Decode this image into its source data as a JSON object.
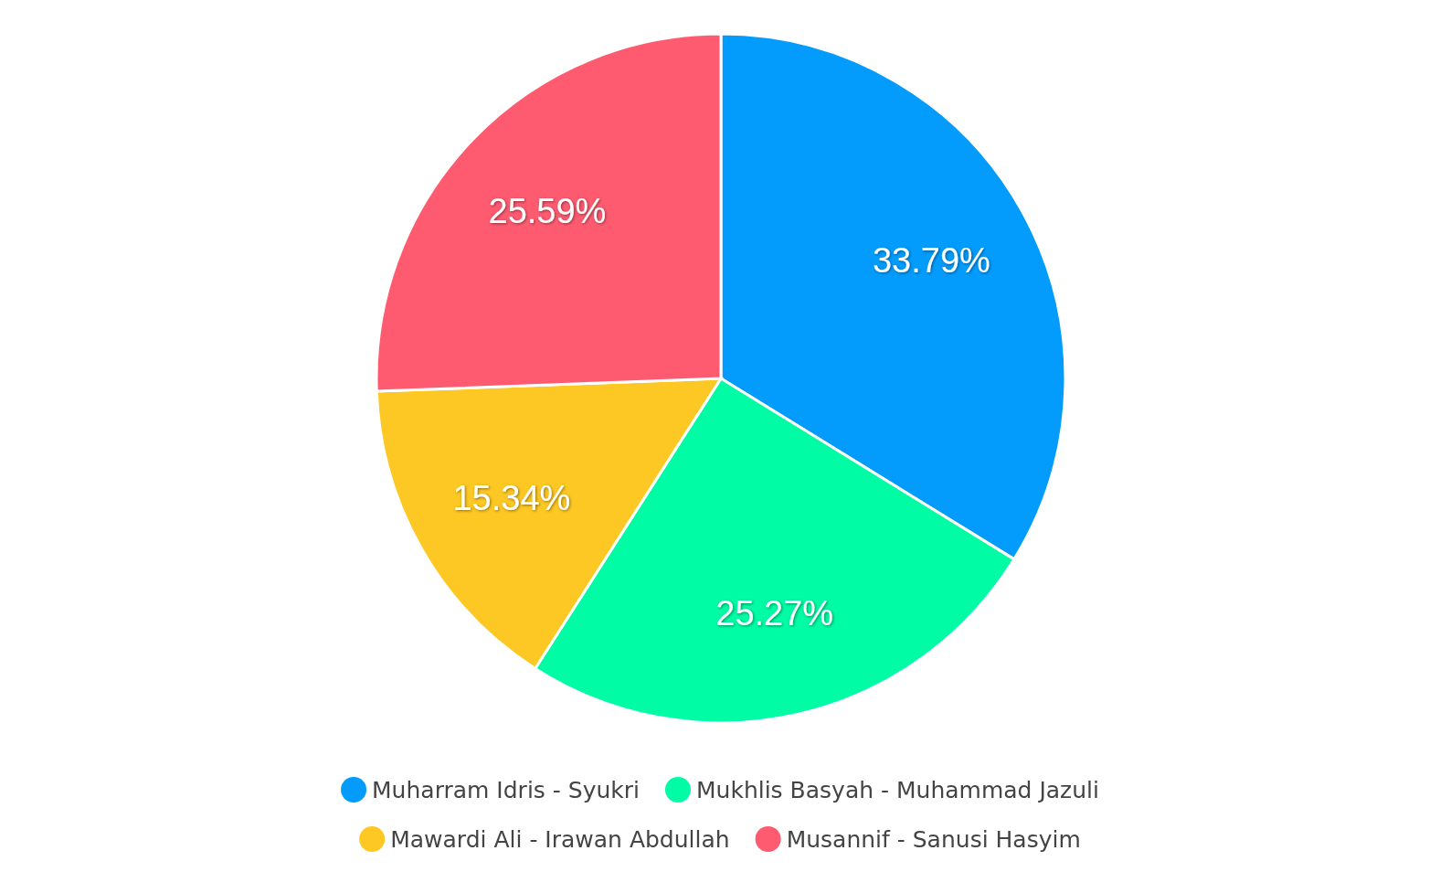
{
  "chart_data": {
    "type": "pie",
    "categories": [
      "Muharram Idris - Syukri",
      "Mukhlis Basyah - Muhammad Jazuli",
      "Mawardi Ali - Irawan Abdullah",
      "Musannif - Sanusi Hasyim"
    ],
    "values": [
      33.79,
      25.27,
      15.34,
      25.59
    ],
    "colors": [
      "#039cfd",
      "#00fca4",
      "#fdc824",
      "#fe5b70"
    ],
    "value_labels": [
      "33.79%",
      "25.27%",
      "15.34%",
      "25.59%"
    ],
    "legend": "bottom"
  }
}
